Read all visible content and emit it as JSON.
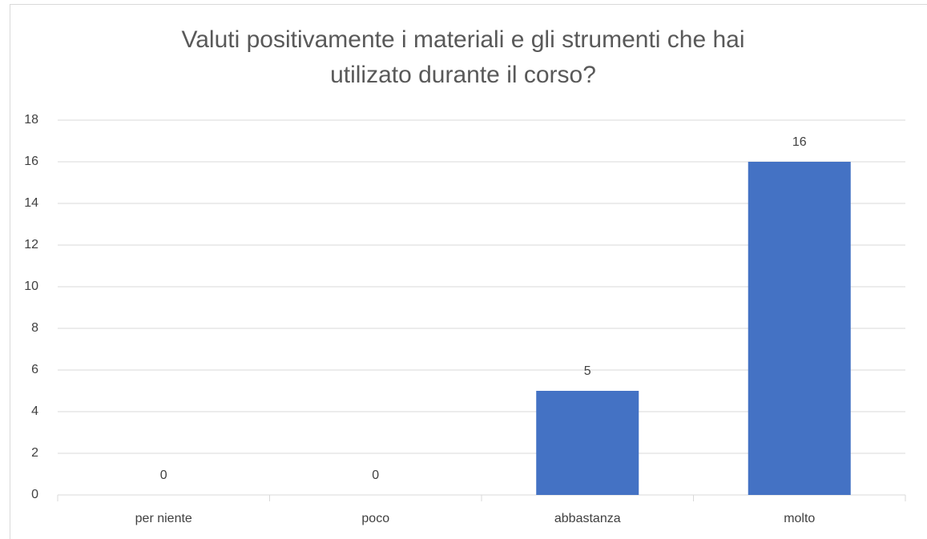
{
  "chart_data": {
    "type": "bar",
    "title": "Valuti positivamente i materiali e gli strumenti che hai utilizato durante il corso?",
    "categories": [
      "per niente",
      "poco",
      "abbastanza",
      "molto"
    ],
    "values": [
      0,
      0,
      5,
      16
    ],
    "color": "#4472c4",
    "ylim": [
      0,
      18
    ],
    "yticks": [
      0,
      2,
      4,
      6,
      8,
      10,
      12,
      14,
      16,
      18
    ],
    "grid": true,
    "data_labels": true
  }
}
